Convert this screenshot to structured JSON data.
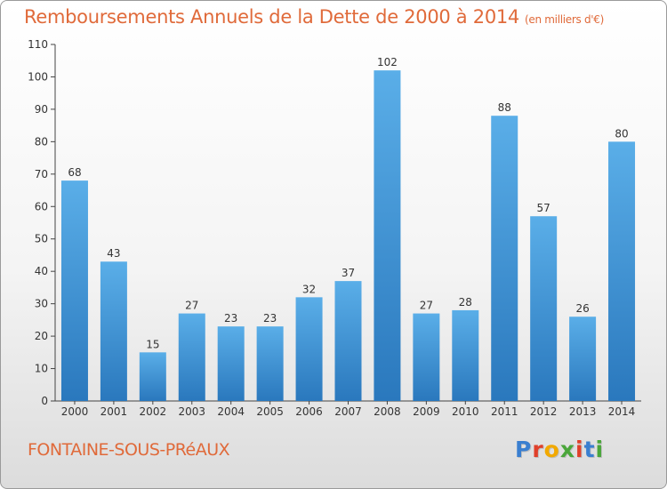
{
  "header": {
    "title": "Remboursements Annuels de la Dette de 2000 à 2014",
    "unit": "(en milliers d'€)"
  },
  "footer": {
    "commune": "FONTAINE-SOUS-PRéAUX",
    "logo_letters": [
      "P",
      "r",
      "o",
      "x",
      "i",
      "t",
      "i"
    ],
    "logo_colors": [
      "#3a7fd0",
      "#e0402a",
      "#f2a900",
      "#4aa63a",
      "#e0402a",
      "#3a7fd0",
      "#4aa63a"
    ]
  },
  "chart_data": {
    "type": "bar",
    "categories": [
      "2000",
      "2001",
      "2002",
      "2003",
      "2004",
      "2005",
      "2006",
      "2007",
      "2008",
      "2009",
      "2010",
      "2011",
      "2012",
      "2013",
      "2014"
    ],
    "values": [
      68,
      43,
      15,
      27,
      23,
      23,
      32,
      37,
      102,
      27,
      28,
      88,
      57,
      26,
      80
    ],
    "ylim": [
      0,
      110
    ],
    "yticks": [
      0,
      10,
      20,
      30,
      40,
      50,
      60,
      70,
      80,
      90,
      100,
      110
    ],
    "grid": false,
    "bar_color_top": "#5aaee8",
    "bar_color_bottom": "#2a78bd"
  }
}
